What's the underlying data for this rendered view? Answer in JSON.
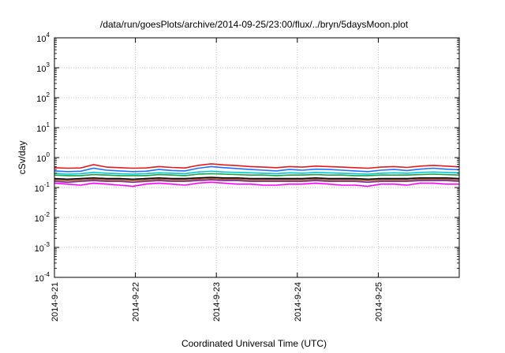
{
  "chart_data": {
    "type": "line",
    "title": "/data/run/goesPlots/archive/2014-09-25/23:00/flux/../bryn/5daysMoon.plot",
    "xlabel": "Coordinated Universal Time (UTC)",
    "ylabel": "cSv/day",
    "yscale": "log",
    "ylim": [
      0.0001,
      10000
    ],
    "xlim": [
      "2014-09-21",
      "2014-09-26"
    ],
    "grid": true,
    "x_ticks": [
      "2014-9-21",
      "2014-9-22",
      "2014-9-23",
      "2014-9-24",
      "2014-9-25"
    ],
    "y_ticks": [
      {
        "value": 0.0001,
        "base": "10",
        "exp": "-4"
      },
      {
        "value": 0.001,
        "base": "10",
        "exp": "-3"
      },
      {
        "value": 0.01,
        "base": "10",
        "exp": "-2"
      },
      {
        "value": 0.1,
        "base": "10",
        "exp": "-1"
      },
      {
        "value": 1,
        "base": "10",
        "exp": "0"
      },
      {
        "value": 10,
        "base": "10",
        "exp": "1"
      },
      {
        "value": 100,
        "base": "10",
        "exp": "2"
      },
      {
        "value": 1000,
        "base": "10",
        "exp": "3"
      },
      {
        "value": 10000,
        "base": "10",
        "exp": "4"
      }
    ],
    "series": [
      {
        "color": "#e41a1c",
        "values": [
          0.46,
          0.44,
          0.45,
          0.58,
          0.48,
          0.46,
          0.44,
          0.45,
          0.5,
          0.47,
          0.45,
          0.55,
          0.62,
          0.57,
          0.54,
          0.5,
          0.48,
          0.46,
          0.5,
          0.48,
          0.52,
          0.5,
          0.48,
          0.46,
          0.44,
          0.48,
          0.5,
          0.47,
          0.52,
          0.55,
          0.52,
          0.49
        ]
      },
      {
        "color": "#1f6fff",
        "values": [
          0.36,
          0.34,
          0.35,
          0.44,
          0.38,
          0.36,
          0.34,
          0.35,
          0.4,
          0.37,
          0.36,
          0.44,
          0.5,
          0.46,
          0.43,
          0.4,
          0.38,
          0.36,
          0.4,
          0.38,
          0.41,
          0.4,
          0.38,
          0.36,
          0.34,
          0.38,
          0.4,
          0.37,
          0.41,
          0.44,
          0.41,
          0.39
        ]
      },
      {
        "color": "#00c8d8",
        "values": [
          0.3,
          0.28,
          0.29,
          0.32,
          0.3,
          0.29,
          0.28,
          0.29,
          0.31,
          0.3,
          0.29,
          0.33,
          0.35,
          0.33,
          0.32,
          0.31,
          0.3,
          0.29,
          0.31,
          0.3,
          0.32,
          0.31,
          0.3,
          0.29,
          0.28,
          0.3,
          0.31,
          0.3,
          0.32,
          0.33,
          0.32,
          0.31
        ]
      },
      {
        "color": "#22a045",
        "values": [
          0.26,
          0.25,
          0.25,
          0.27,
          0.26,
          0.25,
          0.25,
          0.25,
          0.27,
          0.26,
          0.25,
          0.28,
          0.29,
          0.28,
          0.27,
          0.26,
          0.26,
          0.25,
          0.26,
          0.26,
          0.27,
          0.26,
          0.26,
          0.25,
          0.25,
          0.26,
          0.26,
          0.26,
          0.27,
          0.28,
          0.27,
          0.26
        ]
      },
      {
        "color": "#000000",
        "values": [
          0.2,
          0.19,
          0.2,
          0.21,
          0.2,
          0.2,
          0.19,
          0.2,
          0.21,
          0.2,
          0.2,
          0.21,
          0.22,
          0.21,
          0.21,
          0.2,
          0.2,
          0.2,
          0.2,
          0.2,
          0.21,
          0.2,
          0.2,
          0.2,
          0.19,
          0.2,
          0.2,
          0.2,
          0.21,
          0.21,
          0.21,
          0.2
        ]
      },
      {
        "color": "#a0522d",
        "values": [
          0.18,
          0.17,
          0.18,
          0.19,
          0.18,
          0.18,
          0.17,
          0.18,
          0.19,
          0.18,
          0.18,
          0.19,
          0.2,
          0.19,
          0.19,
          0.18,
          0.18,
          0.18,
          0.18,
          0.18,
          0.19,
          0.18,
          0.18,
          0.18,
          0.17,
          0.18,
          0.18,
          0.18,
          0.19,
          0.19,
          0.19,
          0.18
        ]
      },
      {
        "color": "#7b2d8e",
        "values": [
          0.16,
          0.15,
          0.16,
          0.17,
          0.16,
          0.16,
          0.15,
          0.16,
          0.17,
          0.16,
          0.16,
          0.17,
          0.18,
          0.17,
          0.17,
          0.16,
          0.16,
          0.16,
          0.16,
          0.16,
          0.17,
          0.16,
          0.16,
          0.16,
          0.15,
          0.16,
          0.16,
          0.16,
          0.17,
          0.17,
          0.17,
          0.16
        ]
      },
      {
        "color": "#ff00ff",
        "values": [
          0.14,
          0.13,
          0.12,
          0.14,
          0.13,
          0.12,
          0.11,
          0.13,
          0.14,
          0.13,
          0.12,
          0.14,
          0.15,
          0.14,
          0.13,
          0.13,
          0.12,
          0.12,
          0.13,
          0.13,
          0.14,
          0.13,
          0.12,
          0.12,
          0.11,
          0.13,
          0.13,
          0.12,
          0.14,
          0.14,
          0.13,
          0.13
        ]
      }
    ]
  }
}
